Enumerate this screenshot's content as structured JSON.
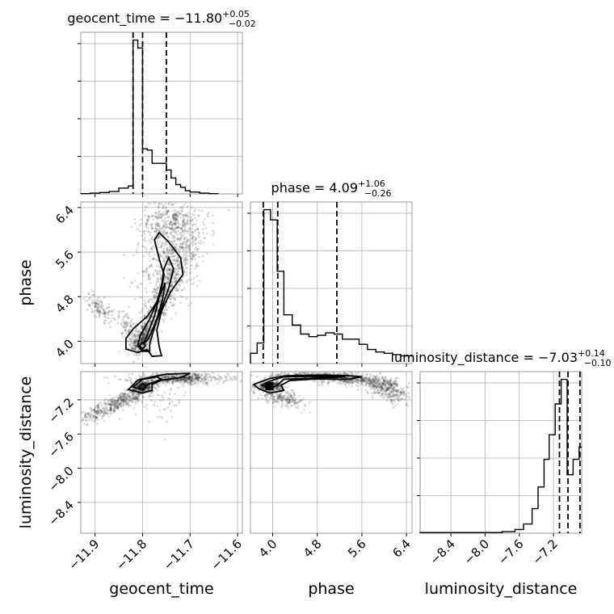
{
  "chart_data": {
    "type": "corner",
    "parameters": [
      {
        "name": "geocent_time",
        "axis_label": "geocent_time",
        "title_main": "geocent_time = −11.80",
        "title_plus": "+0.05",
        "title_minus": "−0.02",
        "range": [
          -11.93,
          -11.59
        ],
        "ticks": [
          -11.9,
          -11.8,
          -11.7,
          -11.6
        ],
        "tick_labels": [
          "−11.9",
          "−11.8",
          "−11.7",
          "−11.6"
        ],
        "quantiles": [
          -11.82,
          -11.8,
          -11.75
        ],
        "hist": {
          "edges": [
            -11.93,
            -11.91,
            -11.89,
            -11.87,
            -11.85,
            -11.83,
            -11.82,
            -11.81,
            -11.8,
            -11.79,
            -11.78,
            -11.77,
            -11.76,
            -11.75,
            -11.74,
            -11.73,
            -11.72,
            -11.71,
            -11.7,
            -11.68,
            -11.66,
            -11.64
          ],
          "counts": [
            0.01,
            0.03,
            0.05,
            0.09,
            0.22,
            0.3,
            5.8,
            5.5,
            1.7,
            1.65,
            1.15,
            1.15,
            1.15,
            0.9,
            0.6,
            0.35,
            0.25,
            0.12,
            0.07,
            0.03,
            0.01
          ]
        }
      },
      {
        "name": "phase",
        "axis_label": "phase",
        "title_main": "phase = 4.09",
        "title_plus": "+1.06",
        "title_minus": "−0.26",
        "range": [
          3.6,
          6.5
        ],
        "ticks": [
          4.0,
          4.8,
          5.6,
          6.4
        ],
        "tick_labels": [
          "4.0",
          "4.8",
          "5.6",
          "6.4"
        ],
        "quantiles": [
          3.83,
          4.09,
          5.15
        ],
        "hist": {
          "edges": [
            3.6,
            3.72,
            3.84,
            3.96,
            4.08,
            4.2,
            4.35,
            4.5,
            4.65,
            4.8,
            4.95,
            5.1,
            5.25,
            5.4,
            5.55,
            5.7,
            5.85,
            6.0,
            6.15,
            6.3,
            6.5
          ],
          "counts": [
            0.4,
            0.8,
            6.0,
            5.6,
            3.6,
            1.9,
            1.5,
            1.15,
            1.05,
            1.1,
            1.2,
            1.15,
            0.95,
            0.95,
            0.75,
            0.55,
            0.45,
            0.4,
            0.35,
            0.3
          ]
        }
      },
      {
        "name": "luminosity_distance",
        "axis_label": "luminosity_distance",
        "title_main": "luminosity_distance = −7.03",
        "title_plus": "+0.14",
        "title_minus": "−0.10",
        "range": [
          -8.76,
          -6.87
        ],
        "ticks": [
          -8.4,
          -8.0,
          -7.6,
          -7.2
        ],
        "tick_labels": [
          "−8.4",
          "−8.0",
          "−7.6",
          "−7.2"
        ],
        "quantiles": [
          -7.13,
          -7.03,
          -6.89
        ],
        "hist": {
          "edges": [
            -8.76,
            -7.8,
            -7.65,
            -7.55,
            -7.45,
            -7.38,
            -7.31,
            -7.25,
            -7.18,
            -7.11,
            -7.04,
            -6.97,
            -6.9,
            -6.87
          ],
          "counts": [
            0.02,
            0.05,
            0.12,
            0.3,
            0.8,
            1.5,
            2.4,
            3.2,
            4.2,
            5.0,
            1.9,
            2.4,
            2.8
          ]
        }
      }
    ],
    "pairs": [
      {
        "x": "geocent_time",
        "y": "phase",
        "samples": [
          {
            "cx": -11.8,
            "cy": 4.05,
            "sx": 0.012,
            "sy": 0.15,
            "n": 320,
            "rho": 0.5
          },
          {
            "cx": -11.76,
            "cy": 4.75,
            "sx": 0.022,
            "sy": 0.35,
            "n": 420,
            "rho": 0.8
          },
          {
            "cx": -11.73,
            "cy": 5.6,
            "sx": 0.035,
            "sy": 0.45,
            "n": 600,
            "rho": 0.4
          },
          {
            "cx": -11.75,
            "cy": 6.15,
            "sx": 0.03,
            "sy": 0.25,
            "n": 300,
            "rho": 0.2
          },
          {
            "cx": -11.89,
            "cy": 4.6,
            "sx": 0.015,
            "sy": 0.12,
            "n": 120,
            "rho": -0.6
          },
          {
            "cx": -11.83,
            "cy": 4.25,
            "sx": 0.01,
            "sy": 0.15,
            "n": 90,
            "rho": -0.5
          }
        ],
        "contours": [
          [
            [
              -11.835,
              3.86
            ],
            [
              -11.835,
              4.05
            ],
            [
              -11.82,
              4.22
            ],
            [
              -11.79,
              4.45
            ],
            [
              -11.77,
              4.7
            ],
            [
              -11.76,
              4.95
            ],
            [
              -11.755,
              5.2
            ],
            [
              -11.765,
              5.48
            ],
            [
              -11.775,
              5.82
            ],
            [
              -11.765,
              5.95
            ],
            [
              -11.745,
              5.78
            ],
            [
              -11.72,
              5.5
            ],
            [
              -11.715,
              5.2
            ],
            [
              -11.74,
              4.9
            ],
            [
              -11.76,
              4.55
            ],
            [
              -11.77,
              4.2
            ],
            [
              -11.765,
              3.9
            ],
            [
              -11.76,
              3.74
            ],
            [
              -11.78,
              3.73
            ],
            [
              -11.79,
              3.85
            ],
            [
              -11.81,
              3.8
            ],
            [
              -11.835,
              3.86
            ]
          ],
          [
            [
              -11.81,
              3.92
            ],
            [
              -11.805,
              4.1
            ],
            [
              -11.785,
              4.4
            ],
            [
              -11.77,
              4.7
            ],
            [
              -11.76,
              5.0
            ],
            [
              -11.755,
              5.3
            ],
            [
              -11.745,
              5.5
            ],
            [
              -11.735,
              5.3
            ],
            [
              -11.745,
              4.95
            ],
            [
              -11.76,
              4.6
            ],
            [
              -11.775,
              4.25
            ],
            [
              -11.785,
              3.95
            ],
            [
              -11.785,
              3.82
            ],
            [
              -11.8,
              3.82
            ],
            [
              -11.81,
              3.92
            ]
          ],
          [
            [
              -11.798,
              3.95
            ],
            [
              -11.79,
              4.12
            ],
            [
              -11.775,
              4.45
            ],
            [
              -11.765,
              4.8
            ],
            [
              -11.752,
              5.05
            ],
            [
              -11.758,
              4.75
            ],
            [
              -11.77,
              4.4
            ],
            [
              -11.787,
              4.05
            ],
            [
              -11.798,
              3.95
            ]
          ],
          [
            [
              -11.806,
              3.92
            ],
            [
              -11.8,
              3.98
            ],
            [
              -11.794,
              3.92
            ],
            [
              -11.8,
              3.86
            ],
            [
              -11.806,
              3.92
            ]
          ]
        ]
      },
      {
        "x": "geocent_time",
        "y": "luminosity_distance",
        "samples": [
          {
            "cx": -11.8,
            "cy": -7.05,
            "sx": 0.012,
            "sy": 0.04,
            "n": 300,
            "rho": 0.2
          },
          {
            "cx": -11.72,
            "cy": -6.95,
            "sx": 0.05,
            "sy": 0.03,
            "n": 500,
            "rho": 0.0
          },
          {
            "cx": -11.84,
            "cy": -7.2,
            "sx": 0.025,
            "sy": 0.05,
            "n": 220,
            "rho": 0.6
          },
          {
            "cx": -11.89,
            "cy": -7.35,
            "sx": 0.025,
            "sy": 0.06,
            "n": 180,
            "rho": 0.7
          },
          {
            "cx": -11.76,
            "cy": -7.15,
            "sx": 0.03,
            "sy": 0.15,
            "n": 80,
            "rho": 0.0
          }
        ],
        "contours": [
          [
            [
              -11.83,
              -7.08
            ],
            [
              -11.81,
              -6.97
            ],
            [
              -11.78,
              -6.93
            ],
            [
              -11.75,
              -6.9
            ],
            [
              -11.7,
              -6.89
            ],
            [
              -11.72,
              -6.94
            ],
            [
              -11.76,
              -6.97
            ],
            [
              -11.78,
              -7.02
            ],
            [
              -11.78,
              -7.09
            ],
            [
              -11.8,
              -7.12
            ],
            [
              -11.83,
              -7.08
            ]
          ],
          [
            [
              -11.82,
              -7.05
            ],
            [
              -11.8,
              -6.96
            ],
            [
              -11.77,
              -6.93
            ],
            [
              -11.76,
              -6.96
            ],
            [
              -11.79,
              -7.02
            ],
            [
              -11.8,
              -7.08
            ],
            [
              -11.82,
              -7.05
            ]
          ],
          [
            [
              -11.808,
              -7.05
            ],
            [
              -11.8,
              -7.01
            ],
            [
              -11.792,
              -7.05
            ],
            [
              -11.8,
              -7.09
            ],
            [
              -11.808,
              -7.05
            ]
          ]
        ]
      },
      {
        "x": "phase",
        "y": "luminosity_distance",
        "samples": [
          {
            "cx": 3.95,
            "cy": -7.04,
            "sx": 0.12,
            "sy": 0.03,
            "n": 320,
            "rho": 0.0
          },
          {
            "cx": 5.4,
            "cy": -6.96,
            "sx": 0.4,
            "sy": 0.04,
            "n": 450,
            "rho": -0.5
          },
          {
            "cx": 6.05,
            "cy": -7.08,
            "sx": 0.2,
            "sy": 0.08,
            "n": 300,
            "rho": -0.6
          },
          {
            "cx": 4.2,
            "cy": -7.18,
            "sx": 0.2,
            "sy": 0.05,
            "n": 180,
            "rho": -0.5
          },
          {
            "cx": 4.55,
            "cy": -6.92,
            "sx": 0.35,
            "sy": 0.02,
            "n": 200,
            "rho": 0.0
          }
        ],
        "contours": [
          [
            [
              3.66,
              -7.02
            ],
            [
              3.78,
              -6.99
            ],
            [
              3.95,
              -6.95
            ],
            [
              4.2,
              -6.92
            ],
            [
              4.8,
              -6.91
            ],
            [
              5.3,
              -6.915
            ],
            [
              5.6,
              -6.93
            ],
            [
              5.35,
              -6.96
            ],
            [
              4.8,
              -6.955
            ],
            [
              4.3,
              -6.975
            ],
            [
              4.15,
              -7.03
            ],
            [
              4.2,
              -7.09
            ],
            [
              3.95,
              -7.12
            ],
            [
              3.75,
              -7.07
            ],
            [
              3.66,
              -7.02
            ]
          ],
          [
            [
              3.8,
              -7.03
            ],
            [
              3.95,
              -6.98
            ],
            [
              4.2,
              -6.93
            ],
            [
              4.8,
              -6.925
            ],
            [
              5.3,
              -6.93
            ],
            [
              4.8,
              -6.945
            ],
            [
              4.2,
              -6.96
            ],
            [
              4.05,
              -7.04
            ],
            [
              3.95,
              -7.07
            ],
            [
              3.8,
              -7.03
            ]
          ]
        ],
        "markers": [
          {
            "x": 3.94,
            "y": -7.04
          }
        ]
      }
    ]
  }
}
